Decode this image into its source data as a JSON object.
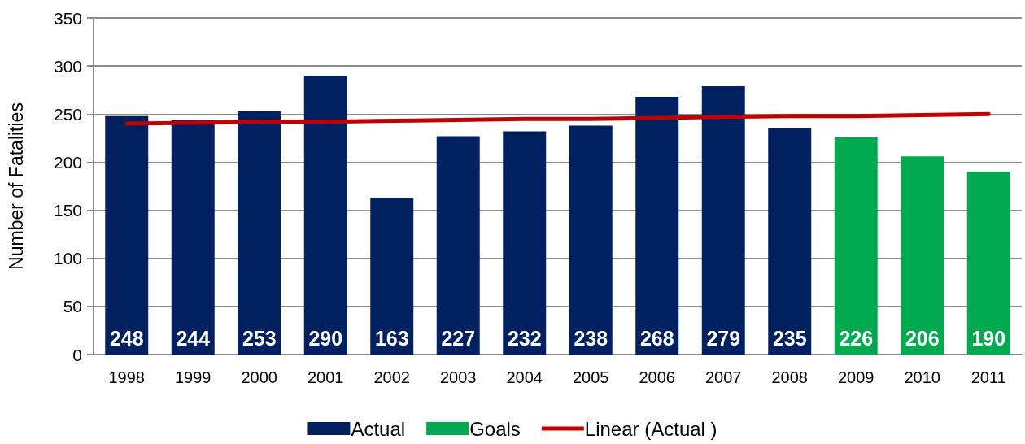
{
  "chart_data": {
    "type": "bar",
    "ylabel": "Number of Fatalities",
    "categories": [
      "1998",
      "1999",
      "2000",
      "2001",
      "2002",
      "2003",
      "2004",
      "2005",
      "2006",
      "2007",
      "2008",
      "2009",
      "2010",
      "2011"
    ],
    "series": [
      {
        "name": "Actual",
        "color": "#002060",
        "values": [
          248,
          244,
          253,
          290,
          163,
          227,
          232,
          238,
          268,
          279,
          235,
          null,
          null,
          null
        ],
        "value_labels": [
          "248",
          "244",
          "253",
          "290",
          "163",
          "227",
          "232",
          "238",
          "268",
          "279",
          "235",
          null,
          null,
          null
        ]
      },
      {
        "name": "Goals",
        "color": "#00a84f",
        "values": [
          null,
          null,
          null,
          null,
          null,
          null,
          null,
          null,
          null,
          null,
          null,
          226,
          206,
          190
        ],
        "value_labels": [
          null,
          null,
          null,
          null,
          null,
          null,
          null,
          null,
          null,
          null,
          null,
          "226",
          "206",
          "190"
        ]
      },
      {
        "name": "Linear (Actual )",
        "type": "line",
        "color": "#c00000",
        "values": [
          240,
          241,
          242,
          242,
          243,
          244,
          245,
          245,
          246,
          247,
          248,
          248,
          249,
          250
        ]
      }
    ],
    "ylim": [
      0,
      350
    ],
    "yticks": [
      0,
      50,
      100,
      150,
      200,
      250,
      300,
      350
    ],
    "grid": "y",
    "legend": "bottom",
    "marker": "none"
  }
}
